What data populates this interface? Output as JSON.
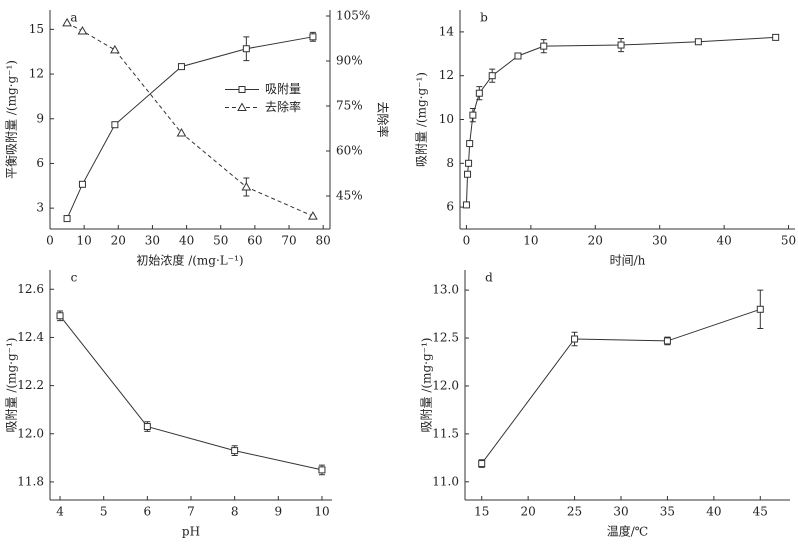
{
  "chart_data": [
    {
      "type": "line",
      "label": "a",
      "x_label": "初始浓度 /(mg·L⁻¹)",
      "y_label": "平衡吸附量 /(mg·g⁻¹)",
      "y2_label": "去除率",
      "x": [
        5,
        9.5,
        19,
        38.5,
        57.5,
        77
      ],
      "xlim": [
        0,
        82
      ],
      "xticks": [
        0,
        10,
        20,
        30,
        40,
        50,
        60,
        70,
        80
      ],
      "ylim": [
        1.6,
        16.3
      ],
      "yticks": [
        3,
        6,
        9,
        12,
        15
      ],
      "y2lim": [
        34,
        107
      ],
      "y2ticks": [
        {
          "value": 45,
          "label": "45%"
        },
        {
          "value": 60,
          "label": "60%"
        },
        {
          "value": 75,
          "label": "75%"
        },
        {
          "value": 90,
          "label": "90%"
        },
        {
          "value": 105,
          "label": "105%"
        }
      ],
      "legend": "center right",
      "series": [
        {
          "name": "吸附量",
          "color": "#333333",
          "marker": "square",
          "dash": false,
          "values": [
            2.3,
            4.6,
            8.6,
            12.5,
            13.7,
            14.5
          ],
          "errors": [
            null,
            null,
            null,
            null,
            0.8,
            0.3
          ]
        },
        {
          "name": "去除率",
          "color": "#333333",
          "marker": "triangle",
          "dash": true,
          "axis": "y2",
          "values": [
            102.7,
            100,
            93.7,
            66,
            48,
            38.3
          ],
          "errors": [
            null,
            null,
            null,
            null,
            3,
            null
          ]
        }
      ]
    },
    {
      "type": "line",
      "label": "b",
      "x_label": "时间/h",
      "y_label": "吸附量 /(mg·g⁻¹)",
      "x": [
        0,
        0.17,
        0.33,
        0.5,
        1,
        2,
        4,
        8,
        12,
        24,
        36,
        48
      ],
      "xlim": [
        -1,
        51
      ],
      "xticks": [
        0,
        10,
        20,
        30,
        40,
        50
      ],
      "ylim": [
        5,
        15
      ],
      "yticks": [
        6,
        8,
        10,
        12,
        14
      ],
      "series": [
        {
          "color": "#333333",
          "marker": "square",
          "dash": false,
          "values": [
            6.1,
            7.5,
            8,
            8.9,
            10.2,
            11.2,
            12,
            12.9,
            13.35,
            13.4,
            13.55,
            13.75
          ],
          "errors": [
            null,
            null,
            null,
            null,
            0.3,
            0.3,
            0.3,
            0.1,
            0.3,
            0.3,
            0.1,
            0.1
          ]
        }
      ]
    },
    {
      "type": "line",
      "label": "c",
      "x_label": "pH",
      "y_label": "吸附量 /(mg·g⁻¹)",
      "x": [
        4,
        6,
        8,
        10
      ],
      "xlim": [
        3.77,
        10.23
      ],
      "xticks": [
        4,
        5,
        6,
        7,
        8,
        9,
        10
      ],
      "ylim": [
        11.725,
        12.68
      ],
      "yticks": [
        11.8,
        {
          "value": 12,
          "label": "12.0"
        },
        12.2,
        12.4,
        12.6
      ],
      "series": [
        {
          "color": "#333333",
          "marker": "square",
          "dash": false,
          "values": [
            12.49,
            12.03,
            11.93,
            11.85
          ],
          "errors": [
            0.02,
            0.02,
            0.02,
            0.02
          ]
        }
      ]
    },
    {
      "type": "line",
      "label": "d",
      "x_label": "温度/℃",
      "y_label": "吸附量 /(mg·g⁻¹)",
      "x": [
        15,
        25,
        35,
        45
      ],
      "xlim": [
        13.2,
        48.2
      ],
      "xticks": [
        15,
        20,
        25,
        30,
        35,
        40,
        45
      ],
      "ylim": [
        10.81,
        13.21
      ],
      "yticks": [
        {
          "value": 11,
          "label": "11.0"
        },
        11.5,
        {
          "value": 12,
          "label": "12.0"
        },
        12.5,
        {
          "value": 13,
          "label": "13.0"
        }
      ],
      "series": [
        {
          "color": "#333333",
          "marker": "square",
          "dash": false,
          "values": [
            11.19,
            12.49,
            12.47,
            12.8
          ],
          "errors": [
            0.04,
            0.07,
            0.04,
            0.2
          ]
        }
      ]
    }
  ]
}
